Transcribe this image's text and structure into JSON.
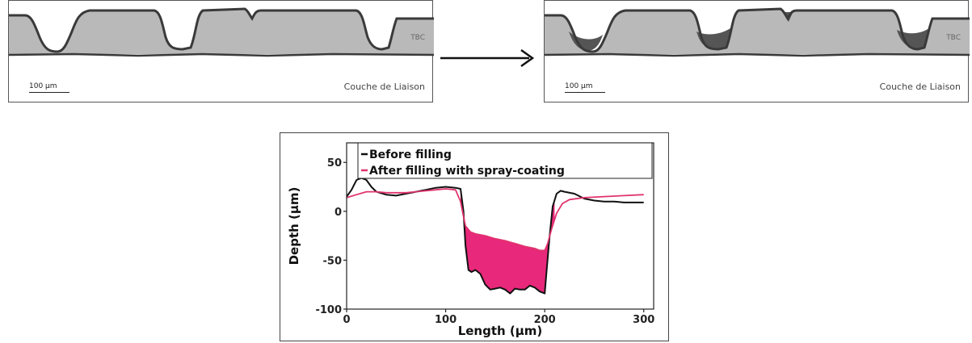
{
  "panels": {
    "left": {
      "tbc_label": "TBC",
      "bond_coat_label": "Couche de Liaison",
      "scale_label": "100 µm"
    },
    "right": {
      "tbc_label": "TBC",
      "bond_coat_label": "Couche de Liaison",
      "scale_label": "100 µm"
    }
  },
  "colors": {
    "coating": "#b9b9b9",
    "coating_edge": "#3a3a3a",
    "filled_coating": "#555555",
    "before_line": "#111111",
    "after_line": "#e0336e",
    "fill_area": "#e8287a"
  },
  "chart_data": {
    "type": "line",
    "xlabel": "Length (µm)",
    "ylabel": "Depth (µm)",
    "xlim": [
      0,
      310
    ],
    "ylim": [
      -100,
      70
    ],
    "xticks": [
      0,
      100,
      200,
      300
    ],
    "yticks": [
      -100,
      -50,
      0,
      50
    ],
    "legend_position": "top-right",
    "fill_between": true,
    "series": [
      {
        "name": "Before filling",
        "color": "#111111",
        "x": [
          0,
          5,
          10,
          15,
          20,
          25,
          30,
          40,
          50,
          60,
          70,
          80,
          90,
          100,
          110,
          115,
          118,
          120,
          123,
          126,
          130,
          135,
          140,
          145,
          150,
          155,
          160,
          165,
          170,
          175,
          180,
          185,
          190,
          195,
          200,
          202,
          205,
          208,
          212,
          216,
          220,
          230,
          240,
          250,
          260,
          270,
          280,
          290,
          300
        ],
        "values": [
          15,
          22,
          32,
          34,
          32,
          25,
          20,
          17,
          16,
          18,
          20,
          22,
          24,
          25,
          24,
          23,
          0,
          -35,
          -60,
          -62,
          -60,
          -64,
          -75,
          -80,
          -79,
          -78,
          -80,
          -84,
          -79,
          -80,
          -80,
          -76,
          -78,
          -82,
          -84,
          -60,
          -25,
          5,
          18,
          21,
          20,
          18,
          13,
          11,
          10,
          10,
          9,
          9,
          9
        ]
      },
      {
        "name": "After filling with spray-coating",
        "color": "#e0336e",
        "x": [
          0,
          10,
          20,
          30,
          40,
          50,
          60,
          70,
          80,
          90,
          100,
          110,
          115,
          118,
          120,
          125,
          130,
          140,
          150,
          160,
          170,
          180,
          190,
          195,
          200,
          203,
          207,
          212,
          218,
          225,
          240,
          260,
          280,
          300
        ],
        "values": [
          14,
          17,
          20,
          20,
          19,
          19,
          19,
          20,
          21,
          22,
          23,
          22,
          10,
          -5,
          -15,
          -21,
          -23,
          -25,
          -28,
          -30,
          -33,
          -36,
          -38,
          -40,
          -40,
          -33,
          -18,
          -2,
          8,
          12,
          14,
          15,
          16,
          17
        ]
      }
    ]
  }
}
